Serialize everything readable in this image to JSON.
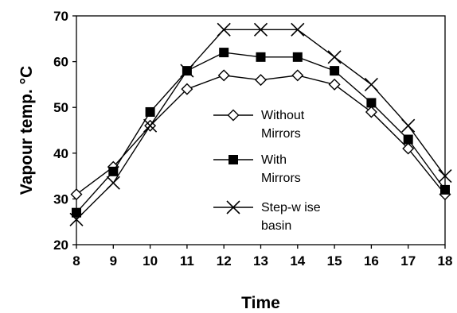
{
  "chart_data": {
    "type": "line",
    "title": "",
    "xlabel": "Time",
    "ylabel": "Vapour temp. °C",
    "x": [
      8,
      9,
      10,
      11,
      12,
      13,
      14,
      15,
      16,
      17,
      18
    ],
    "xlim": [
      8,
      18
    ],
    "ylim": [
      20,
      70
    ],
    "xticks": [
      8,
      9,
      10,
      11,
      12,
      13,
      14,
      15,
      16,
      17,
      18
    ],
    "yticks": [
      20,
      30,
      40,
      50,
      60,
      70
    ],
    "grid": false,
    "legend_position": "center-right",
    "series": [
      {
        "name": "Without Mirrors",
        "legend_lines": [
          "Without",
          "Mirrors"
        ],
        "marker": "diamond-open",
        "color": "#000000",
        "values": [
          31,
          37,
          46,
          54,
          57,
          56,
          57,
          55,
          49,
          41,
          31
        ]
      },
      {
        "name": "With Mirrors",
        "legend_lines": [
          "With",
          "Mirrors"
        ],
        "marker": "square-filled",
        "color": "#000000",
        "values": [
          27,
          36,
          49,
          58,
          62,
          61,
          61,
          58,
          51,
          43,
          32
        ]
      },
      {
        "name": "Step-wise basin",
        "legend_lines": [
          "Step-w ise",
          "basin"
        ],
        "marker": "x",
        "color": "#000000",
        "values": [
          25.5,
          33.5,
          46,
          58,
          67,
          67,
          67,
          61,
          55,
          46,
          35
        ]
      }
    ]
  }
}
